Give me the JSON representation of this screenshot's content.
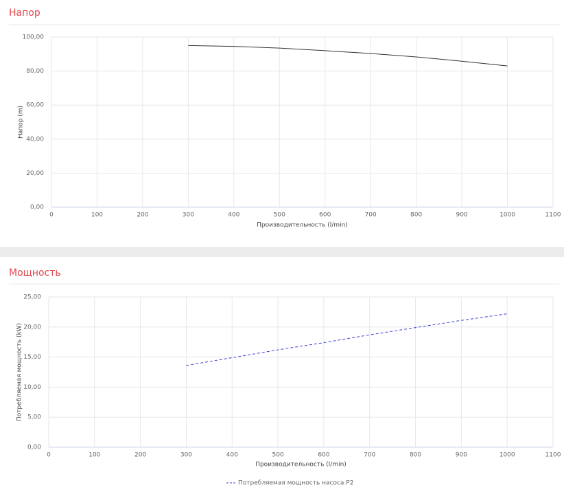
{
  "chart_data": [
    {
      "type": "line",
      "title": "Напор",
      "x": [
        300,
        400,
        500,
        600,
        700,
        800,
        900,
        1000
      ],
      "values": [
        95,
        94.5,
        93.5,
        92,
        90.3,
        88.3,
        85.8,
        83
      ],
      "color": "#333333",
      "xlabel": "Производительность (l/min)",
      "ylabel": "Напор (m)",
      "xlim": [
        0,
        1100
      ],
      "xticks": [
        0,
        100,
        200,
        300,
        400,
        500,
        600,
        700,
        800,
        900,
        1000,
        1100
      ],
      "ylim": [
        0,
        100
      ],
      "yticks": [
        {
          "value": 0,
          "label": "0,00"
        },
        {
          "value": 20,
          "label": "20,00"
        },
        {
          "value": 40,
          "label": "40,00"
        },
        {
          "value": 60,
          "label": "60,00"
        },
        {
          "value": 80,
          "label": "80,00"
        },
        {
          "value": 100,
          "label": "100,00"
        }
      ],
      "grid": true
    },
    {
      "type": "line",
      "title": "Мощность",
      "x": [
        300,
        400,
        500,
        600,
        700,
        800,
        900,
        1000
      ],
      "series": [
        {
          "name": "Потребляемая мощность насоса P2",
          "color": "#3b3bd6",
          "dashed": true,
          "values": [
            13.6,
            14.9,
            16.2,
            17.4,
            18.7,
            19.9,
            21.1,
            22.2
          ]
        }
      ],
      "xlabel": "Производительность (l/min)",
      "ylabel": "Потребляемая мощность (kW)",
      "xlim": [
        0,
        1100
      ],
      "xticks": [
        0,
        100,
        200,
        300,
        400,
        500,
        600,
        700,
        800,
        900,
        1000,
        1100
      ],
      "ylim": [
        0,
        25
      ],
      "yticks": [
        {
          "value": 0,
          "label": "0,00"
        },
        {
          "value": 5,
          "label": "5,00"
        },
        {
          "value": 10,
          "label": "10,00"
        },
        {
          "value": 15,
          "label": "15,00"
        },
        {
          "value": 20,
          "label": "20,00"
        },
        {
          "value": 25,
          "label": "25,00"
        }
      ],
      "grid": true
    }
  ]
}
